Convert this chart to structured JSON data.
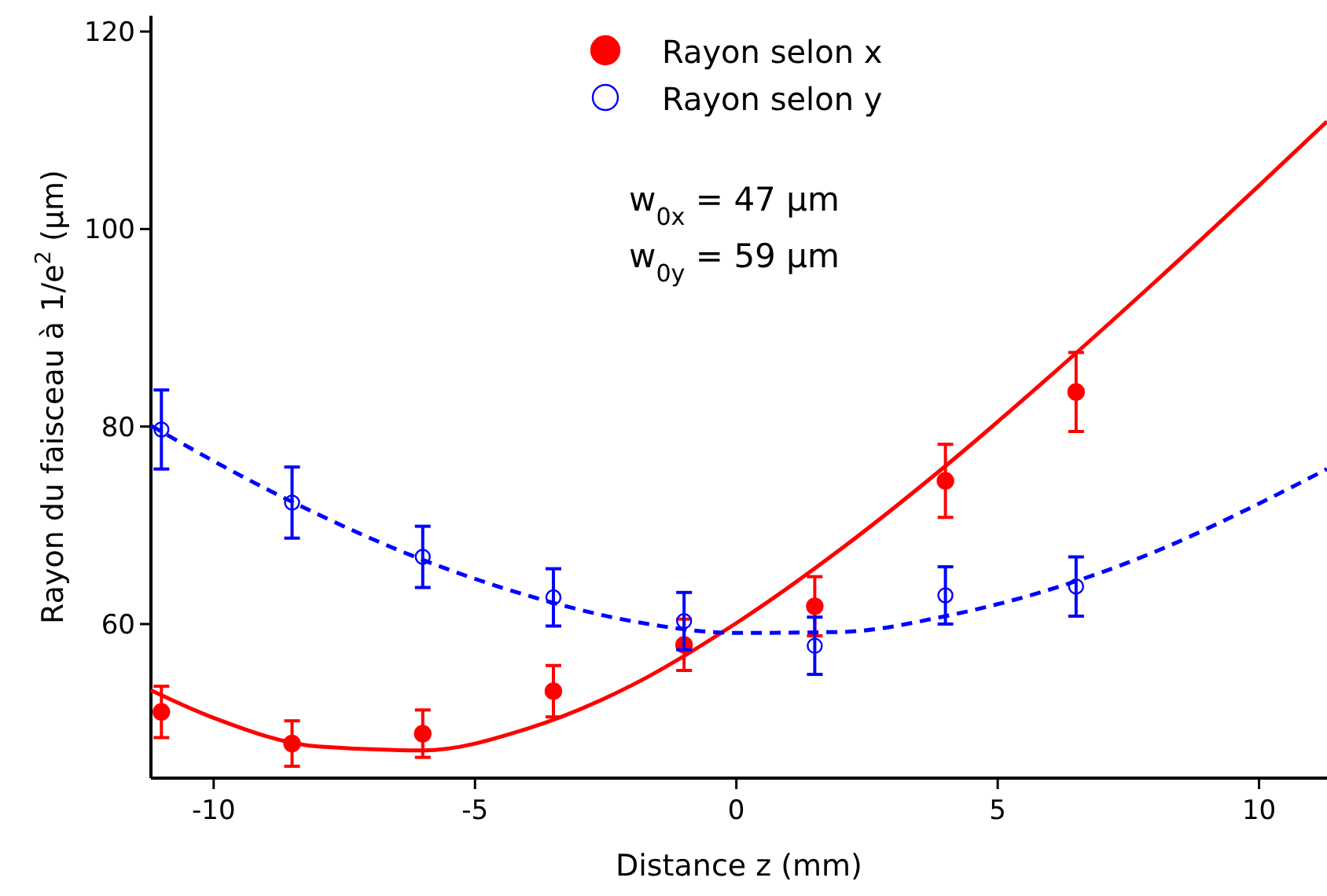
{
  "chart_data": {
    "type": "scatter",
    "xlabel": "Distance z (mm)",
    "ylabel": "Rayon du faisceau à 1/e$^{2}$ (µm)",
    "xlim": [
      -11.2,
      11.3
    ],
    "xticks": [
      {
        "value": -10,
        "label": "-10"
      },
      {
        "value": -5,
        "label": "-5"
      },
      0,
      5,
      10
    ],
    "ylim": [
      44.4,
      121.6
    ],
    "yticks": [
      60,
      80,
      100,
      120
    ],
    "grid": false,
    "legend": "top",
    "annotations": [
      "w$_{0x}$ = 47 µm",
      "w$_{0y}$ = 59 µm"
    ],
    "series": [
      {
        "name": "Rayon selon x",
        "marker": "circle",
        "color": "#ff0000",
        "x": [
          -11,
          -8.5,
          -6,
          -3.5,
          -1,
          1.5,
          4,
          6.5
        ],
        "values": [
          51.1,
          47.9,
          48.9,
          53.2,
          57.9,
          61.8,
          74.5,
          83.5
        ],
        "errors": [
          2.6,
          2.3,
          2.4,
          2.6,
          2.6,
          3,
          3.7,
          4
        ]
      },
      {
        "name": "Rayon selon y",
        "marker": "circle",
        "color": "#0000ff",
        "x": [
          -11,
          -8.5,
          -6,
          -3.5,
          -1,
          1.5,
          4,
          6.5
        ],
        "values": [
          79.7,
          72.3,
          66.8,
          62.7,
          60.3,
          57.8,
          62.9,
          63.8
        ],
        "errors": [
          4,
          3.6,
          3.1,
          2.9,
          2.9,
          2.9,
          2.9,
          3
        ]
      },
      {
        "type": "line",
        "line_style": "solid",
        "color": "#ff0000",
        "x": [
          -11.2,
          -10,
          -8,
          -6,
          -4,
          -2,
          0,
          2,
          4,
          6,
          8,
          10,
          11.3
        ],
        "values": [
          53.3,
          50.5,
          47.6,
          47.2,
          49.4,
          53.8,
          60.1,
          67.6,
          76,
          85.1,
          94.6,
          104.4,
          110.9
        ]
      },
      {
        "type": "line",
        "line_style": "dashed",
        "color": "#0000ff",
        "x": [
          -11.2,
          -10,
          -8,
          -6,
          -4,
          -2,
          0,
          2,
          4,
          6,
          8,
          10,
          11.3
        ],
        "values": [
          80.1,
          76.5,
          71.1,
          66.5,
          62.9,
          60.3,
          59.1,
          59.2,
          60.8,
          63.5,
          67.3,
          72.2,
          75.7
        ]
      }
    ]
  }
}
